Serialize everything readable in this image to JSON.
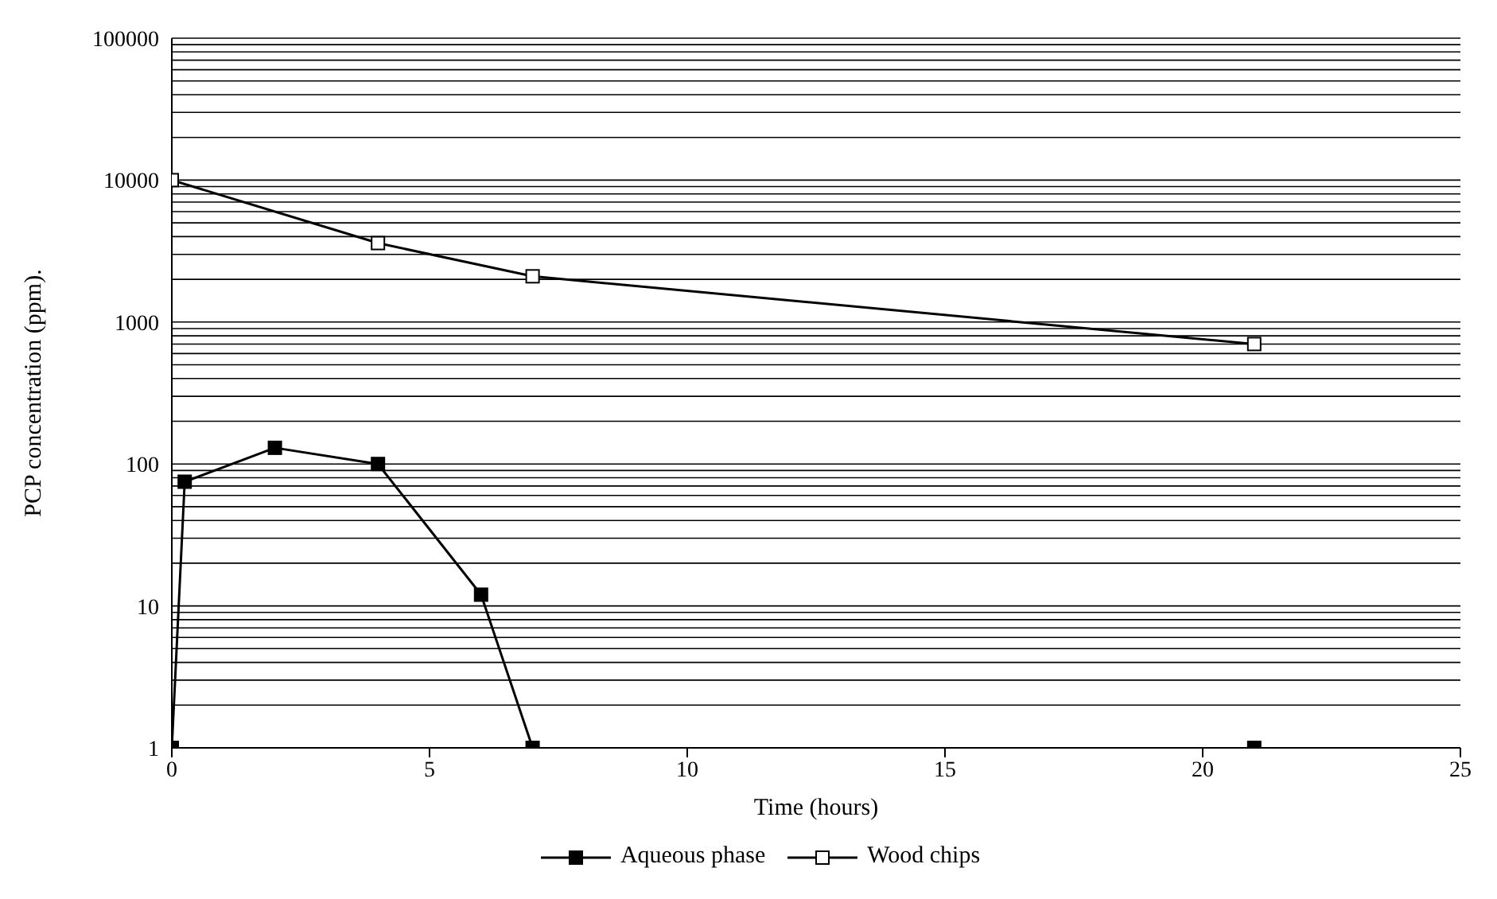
{
  "chart_data": {
    "type": "line",
    "xlabel": "Time (hours)",
    "ylabel": "PCP concentration (ppm).",
    "log": "y",
    "grid": "y",
    "legend": "bottom",
    "marker": "square",
    "line_style": "solid",
    "xlim": [
      0,
      25
    ],
    "xticks": [
      0,
      5,
      10,
      15,
      20,
      25
    ],
    "ylim": [
      1,
      100000
    ],
    "yticks": [
      1,
      {
        "value": 2,
        "label": null
      },
      {
        "value": 3,
        "label": null
      },
      {
        "value": 4,
        "label": null
      },
      {
        "value": 5,
        "label": null
      },
      {
        "value": 6,
        "label": null
      },
      {
        "value": 7,
        "label": null
      },
      {
        "value": 8,
        "label": null
      },
      {
        "value": 9,
        "label": null
      },
      10,
      {
        "value": 20,
        "label": null
      },
      {
        "value": 30,
        "label": null
      },
      {
        "value": 40,
        "label": null
      },
      {
        "value": 50,
        "label": null
      },
      {
        "value": 60,
        "label": null
      },
      {
        "value": 70,
        "label": null
      },
      {
        "value": 80,
        "label": null
      },
      {
        "value": 90,
        "label": null
      },
      100,
      {
        "value": 200,
        "label": null
      },
      {
        "value": 300,
        "label": null
      },
      {
        "value": 400,
        "label": null
      },
      {
        "value": 500,
        "label": null
      },
      {
        "value": 600,
        "label": null
      },
      {
        "value": 700,
        "label": null
      },
      {
        "value": 800,
        "label": null
      },
      {
        "value": 900,
        "label": null
      },
      1000,
      {
        "value": 2000,
        "label": null
      },
      {
        "value": 3000,
        "label": null
      },
      {
        "value": 4000,
        "label": null
      },
      {
        "value": 5000,
        "label": null
      },
      {
        "value": 6000,
        "label": null
      },
      {
        "value": 7000,
        "label": null
      },
      {
        "value": 8000,
        "label": null
      },
      {
        "value": 9000,
        "label": null
      },
      10000,
      {
        "value": 20000,
        "label": null
      },
      {
        "value": 30000,
        "label": null
      },
      {
        "value": 40000,
        "label": null
      },
      {
        "value": 50000,
        "label": null
      },
      {
        "value": 60000,
        "label": null
      },
      {
        "value": 70000,
        "label": null
      },
      {
        "value": 80000,
        "label": null
      },
      {
        "value": 90000,
        "label": null
      },
      100000
    ],
    "series": [
      {
        "name": "Aqueous phase",
        "color": "#000000",
        "x": [
          0,
          0.25,
          2,
          4,
          6,
          7,
          14,
          21
        ],
        "values": [
          1,
          75,
          130,
          100,
          12,
          1,
          null,
          1
        ]
      },
      {
        "name": "Wood chips",
        "color": "#000000",
        "x": [
          0,
          4,
          7,
          21
        ],
        "values": [
          10000,
          3600,
          2100,
          700
        ]
      }
    ]
  }
}
